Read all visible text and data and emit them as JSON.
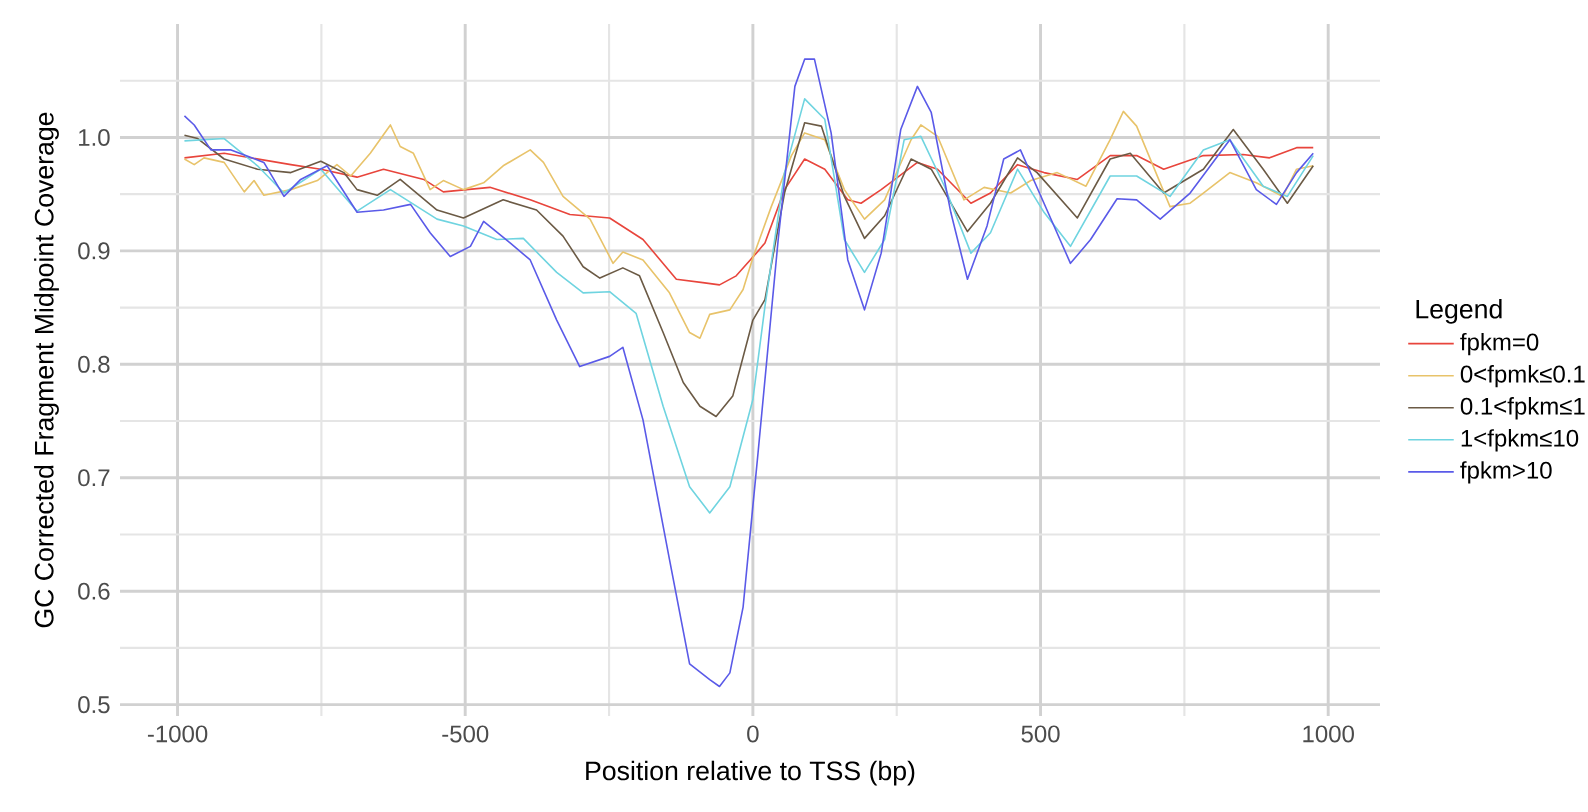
{
  "chart_data": {
    "type": "line",
    "xlabel": "Position relative to TSS (bp)",
    "ylabel": "GC Corrected Fragment Midpoint Coverage",
    "legend_title": "Legend",
    "xlim": [
      -1100,
      1090
    ],
    "ylim": [
      0.49,
      1.1
    ],
    "xticks": [
      -1000,
      {
        "value": -750,
        "label": null
      },
      -500,
      {
        "value": -250,
        "label": null
      },
      0,
      {
        "value": 250,
        "label": null
      },
      500,
      {
        "value": 750,
        "label": null
      },
      1000
    ],
    "yticks": [
      0.5,
      {
        "value": 0.55,
        "label": null
      },
      0.6,
      {
        "value": 0.65,
        "label": null
      },
      0.7,
      {
        "value": 0.75,
        "label": null
      },
      0.8,
      {
        "value": 0.85,
        "label": null
      },
      0.9,
      {
        "value": 0.95,
        "label": null
      },
      {
        "value": 1.0,
        "label": "1.0"
      },
      {
        "value": 1.05,
        "label": null
      }
    ],
    "grid": true,
    "legend": "right",
    "marker": "none",
    "line_style": "solid",
    "series": [
      {
        "name": "fpkm=0",
        "color": "#e8453c",
        "x": [
          -988,
          -919,
          -803,
          -751,
          -688,
          -642,
          -572,
          -538,
          -457,
          -387,
          -318,
          -249,
          -191,
          -133,
          -87,
          -58,
          -29,
          6,
          21,
          55,
          90,
          125,
          165,
          188,
          223,
          286,
          321,
          379,
          413,
          460,
          506,
          564,
          621,
          667,
          714,
          783,
          852,
          898,
          945,
          974
        ],
        "values": [
          0.982,
          0.986,
          0.976,
          0.972,
          0.965,
          0.972,
          0.963,
          0.952,
          0.956,
          0.945,
          0.932,
          0.929,
          0.91,
          0.875,
          0.872,
          0.87,
          0.878,
          0.898,
          0.907,
          0.954,
          0.981,
          0.972,
          0.945,
          0.942,
          0.954,
          0.978,
          0.972,
          0.942,
          0.951,
          0.976,
          0.969,
          0.963,
          0.984,
          0.984,
          0.972,
          0.984,
          0.985,
          0.982,
          0.991,
          0.991
        ]
      },
      {
        "name": "0<fpmk≤0.1",
        "color": "#e8c36a",
        "x": [
          -988,
          -971,
          -954,
          -919,
          -884,
          -867,
          -850,
          -803,
          -757,
          -723,
          -699,
          -665,
          -630,
          -613,
          -590,
          -561,
          -538,
          -503,
          -468,
          -434,
          -387,
          -364,
          -330,
          -283,
          -243,
          -226,
          -191,
          -145,
          -110,
          -92,
          -75,
          -40,
          -17,
          0,
          32,
          67,
          90,
          125,
          159,
          194,
          229,
          275,
          292,
          321,
          367,
          402,
          448,
          483,
          529,
          579,
          621,
          644,
          667,
          725,
          760,
          783,
          829,
          875,
          921,
          945,
          974
        ],
        "values": [
          0.981,
          0.976,
          0.982,
          0.978,
          0.952,
          0.962,
          0.949,
          0.954,
          0.962,
          0.976,
          0.966,
          0.986,
          1.011,
          0.992,
          0.986,
          0.954,
          0.962,
          0.954,
          0.96,
          0.975,
          0.989,
          0.978,
          0.948,
          0.928,
          0.889,
          0.899,
          0.892,
          0.863,
          0.828,
          0.823,
          0.844,
          0.848,
          0.866,
          0.894,
          0.939,
          0.984,
          1.004,
          0.998,
          0.954,
          0.928,
          0.945,
          0.998,
          1.011,
          1.001,
          0.945,
          0.956,
          0.951,
          0.962,
          0.969,
          0.957,
          0.998,
          1.023,
          1.01,
          0.939,
          0.942,
          0.951,
          0.969,
          0.96,
          0.948,
          0.972,
          0.975
        ]
      },
      {
        "name": "0.1<fpkm≤1",
        "color": "#6b5a45",
        "x": [
          -988,
          -965,
          -919,
          -861,
          -803,
          -751,
          -711,
          -688,
          -653,
          -613,
          -549,
          -503,
          -434,
          -376,
          -330,
          -295,
          -266,
          -226,
          -197,
          -156,
          -121,
          -92,
          -64,
          -35,
          0,
          21,
          55,
          90,
          119,
          159,
          194,
          229,
          275,
          310,
          373,
          413,
          460,
          494,
          564,
          621,
          656,
          714,
          783,
          835,
          887,
          929,
          974
        ],
        "values": [
          1.002,
          0.999,
          0.981,
          0.972,
          0.969,
          0.979,
          0.969,
          0.954,
          0.949,
          0.963,
          0.936,
          0.929,
          0.945,
          0.936,
          0.913,
          0.886,
          0.876,
          0.885,
          0.878,
          0.828,
          0.784,
          0.763,
          0.754,
          0.772,
          0.839,
          0.857,
          0.951,
          1.013,
          1.01,
          0.948,
          0.911,
          0.931,
          0.981,
          0.972,
          0.917,
          0.942,
          0.982,
          0.969,
          0.929,
          0.981,
          0.986,
          0.951,
          0.972,
          1.007,
          0.972,
          0.942,
          0.975
        ]
      },
      {
        "name": "1<fpkm≤10",
        "color": "#6fd4e0",
        "x": [
          -988,
          -919,
          -861,
          -815,
          -751,
          -688,
          -630,
          -549,
          -503,
          -445,
          -399,
          -341,
          -295,
          -249,
          -203,
          -156,
          -110,
          -75,
          -40,
          0,
          21,
          55,
          90,
          125,
          159,
          194,
          229,
          263,
          292,
          333,
          379,
          413,
          460,
          506,
          552,
          621,
          667,
          725,
          783,
          829,
          887,
          929,
          974
        ],
        "values": [
          0.997,
          0.999,
          0.975,
          0.951,
          0.972,
          0.935,
          0.954,
          0.928,
          0.922,
          0.91,
          0.911,
          0.881,
          0.863,
          0.864,
          0.845,
          0.763,
          0.692,
          0.669,
          0.692,
          0.769,
          0.851,
          0.969,
          1.034,
          1.016,
          0.91,
          0.881,
          0.91,
          0.998,
          1.001,
          0.957,
          0.898,
          0.916,
          0.972,
          0.934,
          0.904,
          0.966,
          0.966,
          0.948,
          0.989,
          0.998,
          0.957,
          0.948,
          0.984
        ]
      },
      {
        "name": "fpkm>10",
        "color": "#5a5ae8",
        "x": [
          -988,
          -971,
          -942,
          -907,
          -850,
          -815,
          -786,
          -740,
          -688,
          -642,
          -595,
          -561,
          -526,
          -491,
          -468,
          -422,
          -387,
          -341,
          -301,
          -249,
          -226,
          -191,
          -145,
          -110,
          -75,
          -58,
          -40,
          -17,
          0,
          9,
          44,
          73,
          90,
          107,
          136,
          165,
          194,
          223,
          257,
          286,
          310,
          344,
          373,
          407,
          436,
          465,
          506,
          552,
          587,
          633,
          667,
          708,
          760,
          829,
          875,
          910,
          945,
          974
        ],
        "values": [
          1.019,
          1.011,
          0.989,
          0.989,
          0.978,
          0.948,
          0.963,
          0.975,
          0.934,
          0.936,
          0.941,
          0.916,
          0.895,
          0.904,
          0.926,
          0.907,
          0.892,
          0.839,
          0.798,
          0.807,
          0.815,
          0.751,
          0.628,
          0.536,
          0.522,
          0.516,
          0.528,
          0.586,
          0.675,
          0.722,
          0.91,
          1.045,
          1.069,
          1.069,
          1.004,
          0.892,
          0.848,
          0.898,
          1.007,
          1.045,
          1.022,
          0.934,
          0.875,
          0.922,
          0.981,
          0.989,
          0.942,
          0.889,
          0.91,
          0.946,
          0.945,
          0.928,
          0.951,
          0.998,
          0.954,
          0.941,
          0.969,
          0.986
        ]
      }
    ]
  }
}
